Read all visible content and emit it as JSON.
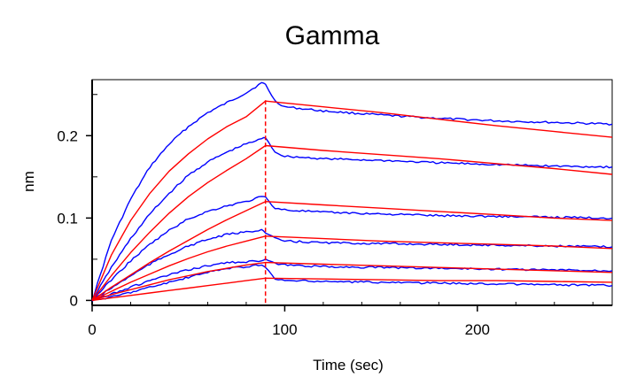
{
  "chart_data": {
    "type": "line",
    "title": "Gamma",
    "xlabel": "Time (sec)",
    "ylabel": "nm",
    "xlim": [
      0,
      270
    ],
    "ylim": [
      -0.006,
      0.268
    ],
    "xticks": [
      0,
      100,
      200
    ],
    "xtick_labels": [
      "0",
      "100",
      "200"
    ],
    "yticks": [
      0,
      0.1,
      0.2
    ],
    "ytick_labels": [
      "0",
      "0.1",
      "0.2"
    ],
    "grid": false,
    "dissociation_start_x": 90,
    "colors": {
      "measured": "#0000ff",
      "fit": "#ff0000",
      "marker": "#ff0000"
    },
    "series": [
      {
        "kind": "measured",
        "color": "#0000ff",
        "x": [
          0,
          10,
          20,
          30,
          40,
          50,
          60,
          70,
          80,
          88,
          90,
          95,
          100,
          120,
          150,
          180,
          210,
          240,
          270
        ],
        "y": [
          0,
          0.073,
          0.123,
          0.162,
          0.19,
          0.211,
          0.228,
          0.24,
          0.252,
          0.264,
          0.262,
          0.242,
          0.235,
          0.23,
          0.225,
          0.221,
          0.218,
          0.216,
          0.214
        ]
      },
      {
        "kind": "measured",
        "color": "#0000ff",
        "x": [
          0,
          10,
          20,
          30,
          40,
          50,
          60,
          70,
          80,
          88,
          90,
          95,
          100,
          120,
          150,
          180,
          210,
          240,
          270
        ],
        "y": [
          0,
          0.04,
          0.075,
          0.105,
          0.13,
          0.152,
          0.168,
          0.18,
          0.19,
          0.196,
          0.198,
          0.18,
          0.175,
          0.172,
          0.17,
          0.167,
          0.165,
          0.163,
          0.162
        ]
      },
      {
        "kind": "measured",
        "color": "#0000ff",
        "x": [
          0,
          10,
          20,
          30,
          40,
          50,
          60,
          70,
          80,
          88,
          90,
          95,
          100,
          120,
          150,
          180,
          210,
          240,
          270
        ],
        "y": [
          0,
          0.025,
          0.048,
          0.068,
          0.085,
          0.099,
          0.108,
          0.115,
          0.12,
          0.126,
          0.125,
          0.112,
          0.11,
          0.107,
          0.105,
          0.103,
          0.102,
          0.101,
          0.1
        ]
      },
      {
        "kind": "measured",
        "color": "#0000ff",
        "x": [
          0,
          10,
          20,
          30,
          40,
          50,
          60,
          70,
          80,
          88,
          90,
          95,
          100,
          120,
          150,
          180,
          210,
          240,
          270
        ],
        "y": [
          0,
          0.015,
          0.03,
          0.044,
          0.056,
          0.066,
          0.074,
          0.08,
          0.083,
          0.086,
          0.082,
          0.075,
          0.072,
          0.07,
          0.069,
          0.068,
          0.067,
          0.066,
          0.065
        ]
      },
      {
        "kind": "measured",
        "color": "#0000ff",
        "x": [
          0,
          10,
          20,
          30,
          40,
          50,
          60,
          70,
          80,
          88,
          90,
          95,
          100,
          120,
          150,
          180,
          210,
          240,
          270
        ],
        "y": [
          0,
          0.008,
          0.016,
          0.024,
          0.031,
          0.037,
          0.042,
          0.046,
          0.047,
          0.048,
          0.049,
          0.045,
          0.043,
          0.041,
          0.04,
          0.039,
          0.038,
          0.037,
          0.036
        ]
      },
      {
        "kind": "measured",
        "color": "#0000ff",
        "x": [
          0,
          10,
          20,
          30,
          40,
          50,
          60,
          70,
          80,
          88,
          90,
          95,
          100,
          120,
          150,
          180,
          210,
          240,
          270
        ],
        "y": [
          0,
          0.004,
          0.01,
          0.016,
          0.022,
          0.028,
          0.034,
          0.039,
          0.041,
          0.043,
          0.04,
          0.026,
          0.024,
          0.023,
          0.022,
          0.021,
          0.02,
          0.019,
          0.018
        ]
      },
      {
        "kind": "fit",
        "color": "#ff0000",
        "x": [
          0,
          10,
          20,
          30,
          40,
          50,
          60,
          70,
          80,
          90,
          120,
          150,
          180,
          210,
          240,
          270
        ],
        "y": [
          0,
          0.055,
          0.097,
          0.13,
          0.157,
          0.178,
          0.196,
          0.211,
          0.223,
          0.242,
          0.235,
          0.228,
          0.22,
          0.212,
          0.205,
          0.198
        ]
      },
      {
        "kind": "fit",
        "color": "#ff0000",
        "x": [
          0,
          10,
          20,
          30,
          40,
          50,
          60,
          70,
          80,
          90,
          120,
          150,
          180,
          210,
          240,
          270
        ],
        "y": [
          0,
          0.03,
          0.058,
          0.083,
          0.106,
          0.126,
          0.143,
          0.158,
          0.172,
          0.188,
          0.182,
          0.177,
          0.172,
          0.166,
          0.16,
          0.153
        ]
      },
      {
        "kind": "fit",
        "color": "#ff0000",
        "x": [
          0,
          10,
          20,
          30,
          40,
          50,
          60,
          70,
          80,
          90,
          120,
          150,
          180,
          210,
          240,
          270
        ],
        "y": [
          0,
          0.016,
          0.031,
          0.046,
          0.06,
          0.073,
          0.086,
          0.098,
          0.109,
          0.12,
          0.116,
          0.112,
          0.108,
          0.104,
          0.1,
          0.097
        ]
      },
      {
        "kind": "fit",
        "color": "#ff0000",
        "x": [
          0,
          10,
          20,
          30,
          40,
          50,
          60,
          70,
          80,
          90,
          120,
          150,
          180,
          210,
          240,
          270
        ],
        "y": [
          0,
          0.011,
          0.022,
          0.032,
          0.042,
          0.051,
          0.059,
          0.066,
          0.072,
          0.078,
          0.075,
          0.072,
          0.07,
          0.068,
          0.066,
          0.063
        ]
      },
      {
        "kind": "fit",
        "color": "#ff0000",
        "x": [
          0,
          10,
          20,
          30,
          40,
          50,
          60,
          70,
          80,
          90,
          120,
          150,
          180,
          210,
          240,
          270
        ],
        "y": [
          0,
          0.007,
          0.013,
          0.019,
          0.025,
          0.03,
          0.035,
          0.039,
          0.043,
          0.046,
          0.044,
          0.042,
          0.04,
          0.038,
          0.036,
          0.034
        ]
      },
      {
        "kind": "fit",
        "color": "#ff0000",
        "x": [
          0,
          10,
          20,
          30,
          40,
          50,
          60,
          70,
          80,
          90,
          120,
          150,
          180,
          210,
          240,
          270
        ],
        "y": [
          0,
          0.003,
          0.006,
          0.009,
          0.012,
          0.015,
          0.018,
          0.021,
          0.024,
          0.027,
          0.026,
          0.025,
          0.024,
          0.024,
          0.023,
          0.022
        ]
      }
    ]
  }
}
